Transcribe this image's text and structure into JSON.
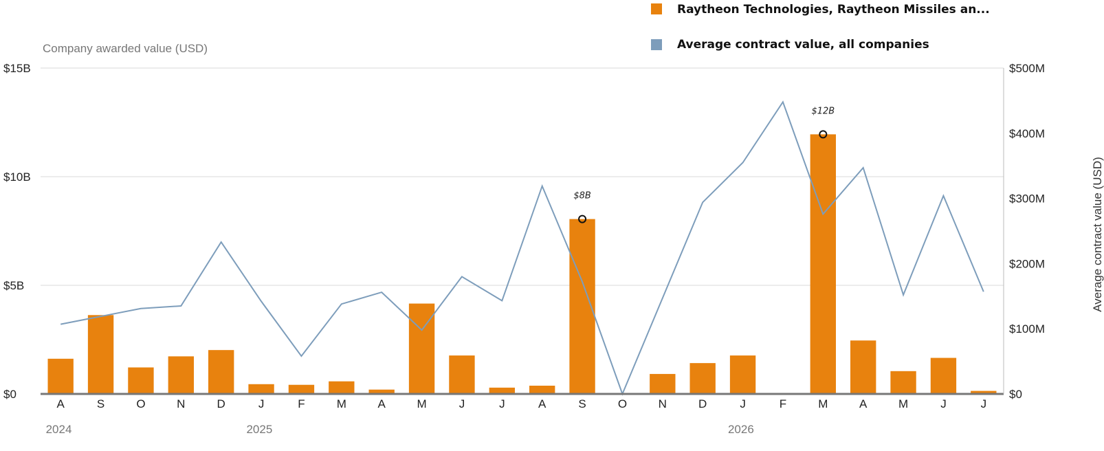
{
  "chart_data": {
    "type": "bar+line",
    "categories": [
      "A",
      "S",
      "O",
      "N",
      "D",
      "J",
      "F",
      "M",
      "A",
      "M",
      "J",
      "J",
      "A",
      "S",
      "O",
      "N",
      "D",
      "J",
      "F",
      "M",
      "A",
      "M",
      "J",
      "J"
    ],
    "year_labels": [
      {
        "index": 0,
        "label": "2024"
      },
      {
        "index": 5,
        "label": "2025"
      },
      {
        "index": 17,
        "label": "2026"
      }
    ],
    "series": [
      {
        "name": "Raytheon Technologies, Raytheon Missiles an...",
        "type": "bar",
        "axis": "left",
        "color": "#E8820E",
        "values": [
          1.62,
          3.63,
          1.22,
          1.73,
          2.02,
          0.45,
          0.42,
          0.58,
          0.2,
          4.16,
          1.77,
          0.29,
          0.38,
          8.05,
          0,
          0.92,
          1.42,
          1.77,
          0,
          11.95,
          2.46,
          1.05,
          1.66,
          0.14
        ]
      },
      {
        "name": "Average contract value, all companies",
        "type": "line",
        "axis": "right",
        "color": "#7D9DBB",
        "values": [
          107,
          119,
          131,
          135,
          233,
          142,
          58,
          138,
          156,
          98,
          180,
          143,
          319,
          172,
          0,
          147,
          294,
          355,
          448,
          276,
          347,
          152,
          304,
          157
        ]
      }
    ],
    "annotations": [
      {
        "index": 13,
        "label": "$8B"
      },
      {
        "index": 19,
        "label": "$12B"
      }
    ],
    "ylabel_left": "Company awarded value (USD)",
    "ylabel_right": "Average contract value (USD)",
    "ylim_left": [
      0,
      15
    ],
    "ylim_right": [
      0,
      500
    ],
    "yticks_left": [
      {
        "value": 0,
        "label": "$0"
      },
      {
        "value": 5,
        "label": "$5B"
      },
      {
        "value": 10,
        "label": "$10B"
      },
      {
        "value": 15,
        "label": "$15B"
      }
    ],
    "yticks_right": [
      {
        "value": 0,
        "label": "$0"
      },
      {
        "value": 100,
        "label": "$100M"
      },
      {
        "value": 200,
        "label": "$200M"
      },
      {
        "value": 300,
        "label": "$300M"
      },
      {
        "value": 400,
        "label": "$400M"
      },
      {
        "value": 500,
        "label": "$500M"
      }
    ],
    "grid": true,
    "legend_position": "top-right"
  }
}
